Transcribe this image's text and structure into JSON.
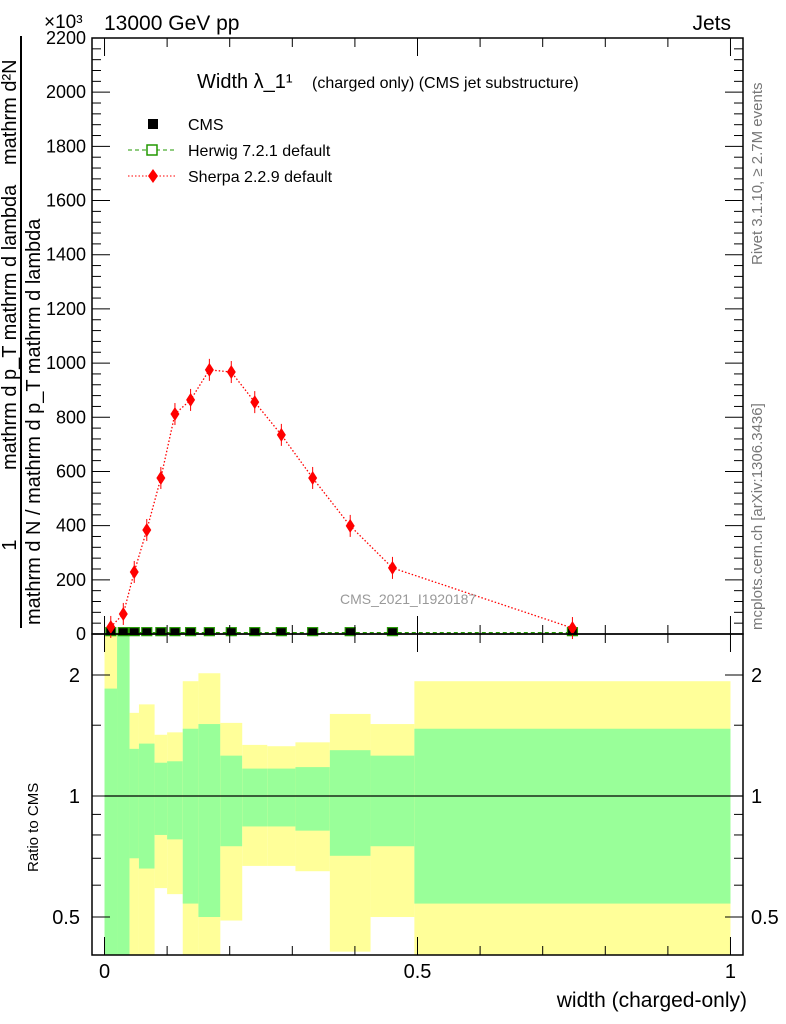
{
  "header": {
    "energy_label": "13000 GeV pp",
    "process_label": "Jets",
    "exponent_label": "×10³",
    "rivet_label": "Rivet 3.1.10, ≥ 2.7M events",
    "mcplots_label": "mcplots.cern.ch [arXiv:1306.3436]",
    "analysis_id": "CMS_2021_I1920187"
  },
  "colors": {
    "cms": "#000000",
    "herwig": "#229900",
    "sherpa": "#ff0000",
    "band_inner": "#99ff99",
    "band_outer": "#ffff99"
  },
  "chart_data": [
    {
      "type": "scatter",
      "title": "Width λ_1¹",
      "subtitle": "(charged only) (CMS jet substructure)",
      "ylabel_num": "mathrm d²N",
      "ylabel_one": "1",
      "ylabel_den": "mathrm d N / mathrm d p_T mathrm d lambda",
      "ylabel_den2": "mathrm d p_T mathrm d lambda",
      "xlim": [
        -0.02,
        1.02
      ],
      "ylim": [
        0,
        2200
      ],
      "yticks": [
        "0",
        "200",
        "400",
        "600",
        "800",
        "1000",
        "1200",
        "1400",
        "1600",
        "1800",
        "2000",
        "2200"
      ],
      "legend_position": "top-left",
      "bin_edges": [
        0,
        0.02,
        0.04,
        0.055,
        0.08,
        0.1,
        0.125,
        0.15,
        0.185,
        0.22,
        0.26,
        0.305,
        0.36,
        0.425,
        0.495,
        1.0
      ],
      "series": [
        {
          "name": "CMS",
          "style": "marker-square",
          "values": [
            5,
            5,
            5,
            5,
            5,
            5,
            5,
            5,
            5,
            5,
            5,
            5,
            5,
            5,
            5
          ]
        },
        {
          "name": "Herwig 7.2.1 default",
          "style": "dashed-open-square",
          "values": [
            5,
            5,
            5,
            5,
            5,
            5,
            5,
            5,
            5,
            5,
            5,
            5,
            5,
            5,
            5
          ]
        },
        {
          "name": "Sherpa 2.2.9 default",
          "style": "dotted-diamond",
          "values": [
            26,
            74,
            229,
            384,
            576,
            812,
            864,
            975,
            967,
            856,
            735,
            576,
            399,
            244,
            22
          ]
        }
      ],
      "legend": [
        "CMS",
        "Herwig 7.2.1 default",
        "Sherpa 2.2.9 default"
      ]
    },
    {
      "type": "area",
      "ylabel": "Ratio to CMS",
      "xlabel": "width (charged-only)",
      "xticks": [
        "0",
        "0.5",
        "1"
      ],
      "yticks": [
        "0.5",
        "1",
        "2"
      ],
      "yscale": "log",
      "ylim": [
        0.4,
        2.53
      ],
      "bin_edges": [
        0,
        0.02,
        0.04,
        0.055,
        0.08,
        0.1,
        0.125,
        0.15,
        0.185,
        0.22,
        0.26,
        0.305,
        0.36,
        0.425,
        0.495,
        1.0
      ],
      "inner_band_upper": [
        1.85,
        3.0,
        1.31,
        1.35,
        1.21,
        1.22,
        1.47,
        1.51,
        1.26,
        1.17,
        1.17,
        1.18,
        1.3,
        1.26,
        1.47
      ],
      "inner_band_lower": [
        0.3,
        0.3,
        0.7,
        0.66,
        0.8,
        0.78,
        0.54,
        0.5,
        0.75,
        0.84,
        0.84,
        0.82,
        0.71,
        0.75,
        0.54
      ],
      "outer_band_upper": [
        3.0,
        3.0,
        1.61,
        1.69,
        1.42,
        1.44,
        1.93,
        2.02,
        1.52,
        1.34,
        1.33,
        1.36,
        1.6,
        1.51,
        1.93
      ],
      "outer_band_lower": [
        0.3,
        0.3,
        0.3,
        0.3,
        0.59,
        0.57,
        0.3,
        0.3,
        0.49,
        0.67,
        0.67,
        0.65,
        0.41,
        0.5,
        0.3
      ]
    }
  ]
}
